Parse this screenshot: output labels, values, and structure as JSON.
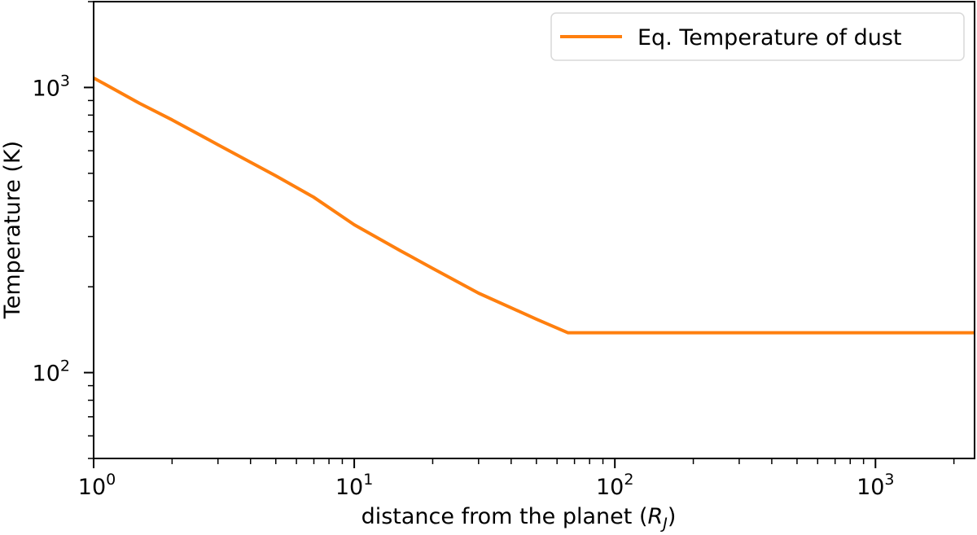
{
  "chart_data": {
    "type": "line",
    "xscale": "log",
    "yscale": "log",
    "xlim": [
      1,
      2400
    ],
    "ylim": [
      50,
      2000
    ],
    "xlabel": "distance from the planet (",
    "xlabel_symbol": "R",
    "xlabel_subscript": "J",
    "xlabel_close": ")",
    "ylabel": "Temperature (K)",
    "x_ticks": [
      {
        "value": 1,
        "base": "10",
        "exp": "0"
      },
      {
        "value": 10,
        "base": "10",
        "exp": "1"
      },
      {
        "value": 100,
        "base": "10",
        "exp": "2"
      },
      {
        "value": 1000,
        "base": "10",
        "exp": "3"
      }
    ],
    "y_ticks": [
      {
        "value": 100,
        "base": "10",
        "exp": "2"
      },
      {
        "value": 1000,
        "base": "10",
        "exp": "3"
      }
    ],
    "legend_position": "top-right",
    "grid": false,
    "series": [
      {
        "name": "Eq. Temperature of dust",
        "color": "#ff7f0e",
        "x": [
          1,
          1.5,
          2,
          3,
          5,
          7,
          10,
          15,
          20,
          30,
          50,
          66,
          100,
          300,
          1000,
          2400
        ],
        "y": [
          1080,
          880,
          770,
          630,
          490,
          412,
          330,
          268,
          232,
          190,
          154,
          138,
          138,
          138,
          138,
          138
        ]
      }
    ]
  }
}
